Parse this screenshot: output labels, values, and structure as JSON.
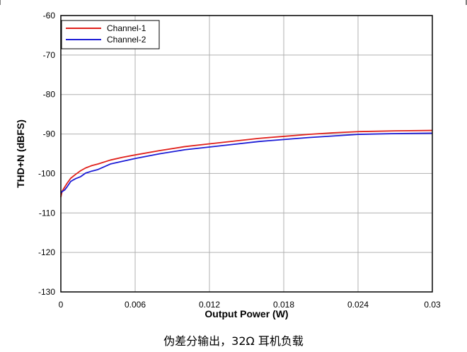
{
  "chart_data": {
    "type": "line",
    "title": "",
    "xlabel": "Output Power (W)",
    "ylabel": "THD+N (dBFS)",
    "xlim": [
      0,
      0.03
    ],
    "ylim": [
      -130,
      -60
    ],
    "x_ticks": [
      0,
      0.006,
      0.012,
      0.018,
      0.024,
      0.03
    ],
    "x_tick_labels": [
      "0",
      "0.006",
      "0.012",
      "0.018",
      "0.024",
      "0.03"
    ],
    "y_ticks": [
      -60,
      -70,
      -80,
      -90,
      -100,
      -110,
      -120,
      -130
    ],
    "y_tick_labels": [
      "-60",
      "-70",
      "-80",
      "-90",
      "-100",
      "-110",
      "-120",
      "-130"
    ],
    "grid": true,
    "legend_position": "top-left",
    "series": [
      {
        "name": "Channel-1",
        "color": "#e0201b",
        "x": [
          0,
          0.0001,
          0.0003,
          0.0005,
          0.0008,
          0.0012,
          0.0016,
          0.002,
          0.0025,
          0.003,
          0.004,
          0.005,
          0.006,
          0.008,
          0.01,
          0.012,
          0.014,
          0.016,
          0.018,
          0.02,
          0.022,
          0.024,
          0.027,
          0.03
        ],
        "y": [
          -106,
          -104.5,
          -103.5,
          -102.5,
          -101.2,
          -100.2,
          -99.3,
          -98.6,
          -98.0,
          -97.6,
          -96.6,
          -95.9,
          -95.3,
          -94.2,
          -93.2,
          -92.5,
          -91.8,
          -91.1,
          -90.6,
          -90.1,
          -89.7,
          -89.4,
          -89.2,
          -89.1
        ]
      },
      {
        "name": "Channel-2",
        "color": "#1c1cd6",
        "x": [
          0,
          0.0001,
          0.0003,
          0.0005,
          0.0008,
          0.0012,
          0.0016,
          0.002,
          0.0025,
          0.003,
          0.004,
          0.005,
          0.006,
          0.008,
          0.01,
          0.012,
          0.014,
          0.016,
          0.018,
          0.02,
          0.022,
          0.024,
          0.027,
          0.03
        ],
        "y": [
          -105,
          -104.6,
          -104.2,
          -103.4,
          -102.0,
          -101.3,
          -100.8,
          -99.9,
          -99.4,
          -99.0,
          -97.6,
          -96.9,
          -96.2,
          -95.0,
          -94.0,
          -93.3,
          -92.6,
          -91.9,
          -91.4,
          -90.9,
          -90.5,
          -90.1,
          -89.9,
          -89.8
        ]
      }
    ]
  },
  "caption": "伪差分输出，32Ω 耳机负载",
  "colors": {
    "grid": "#b0b0b0",
    "axis": "#000000",
    "background": "#ffffff"
  }
}
